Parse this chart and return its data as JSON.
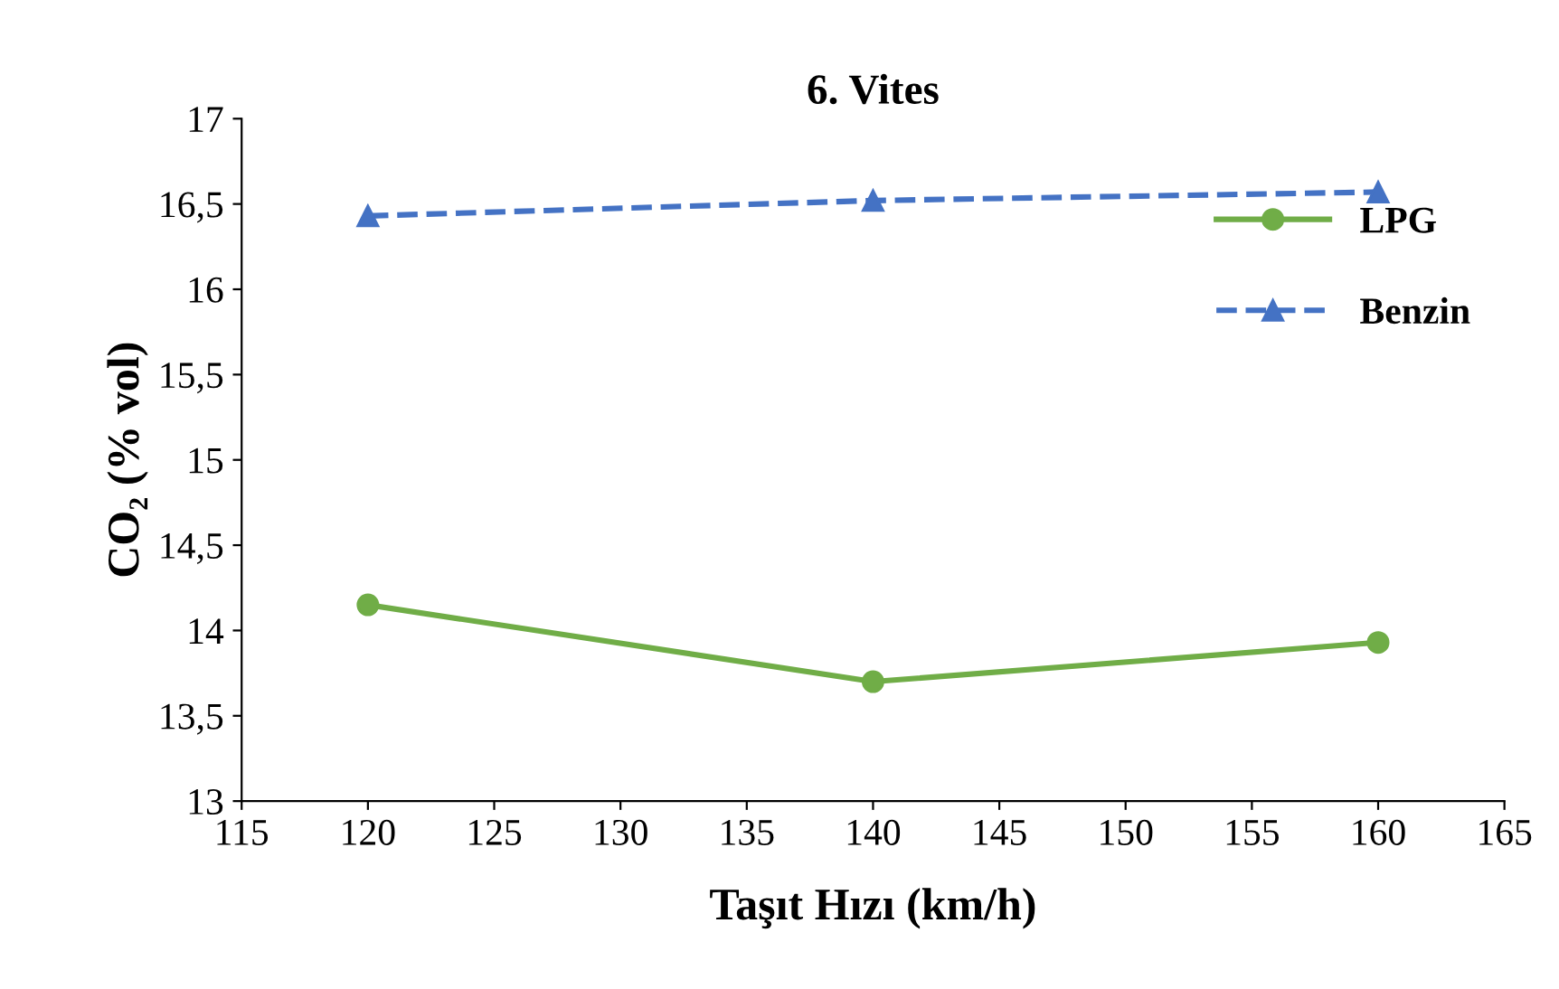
{
  "chart_data": {
    "type": "line",
    "title": "6. Vites",
    "xlabel": "Taşıt Hızı (km/h)",
    "ylabel": "CO₂ (% vol)",
    "x": [
      120,
      140,
      160
    ],
    "series": [
      {
        "name": "LPG",
        "color": "#70ad47",
        "values": [
          14.15,
          13.7,
          13.93
        ],
        "marker": "circle",
        "line_style": "solid"
      },
      {
        "name": "Benzin",
        "color": "#4472c4",
        "values": [
          16.43,
          16.52,
          16.57
        ],
        "marker": "triangle",
        "line_style": "dashed"
      }
    ],
    "xlim": [
      115,
      165
    ],
    "xticks": [
      115,
      120,
      125,
      130,
      135,
      140,
      145,
      150,
      155,
      160,
      165
    ],
    "ylim": [
      13,
      17
    ],
    "yticks": [
      13,
      {
        "value": 13.5,
        "label": "13,5"
      },
      14,
      {
        "value": 14.5,
        "label": "14,5"
      },
      15,
      {
        "value": 15.5,
        "label": "15,5"
      },
      16,
      {
        "value": 16.5,
        "label": "16,5"
      },
      17
    ],
    "grid": false,
    "legend": "right"
  }
}
